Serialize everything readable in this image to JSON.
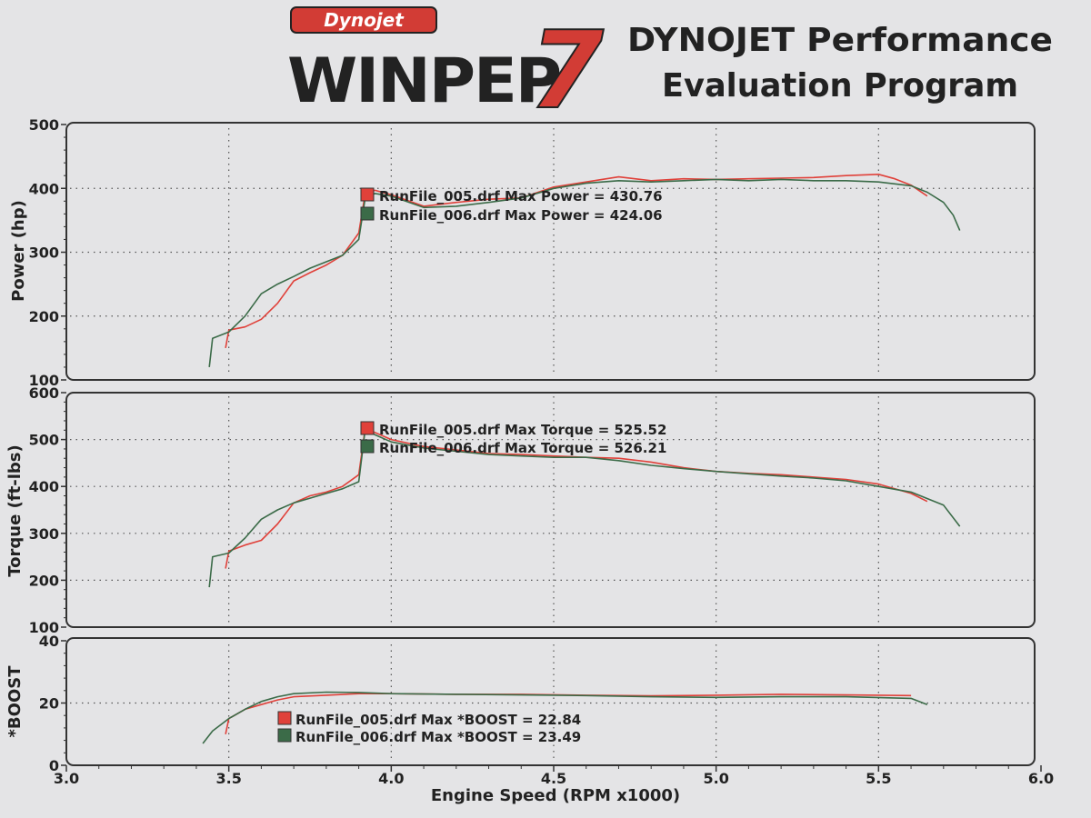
{
  "header": {
    "brand_small": "Dynojet",
    "logo_word": "WINPEP",
    "logo_number": "7",
    "tagline_line1": "DYNOJET Performance",
    "tagline_line2": "Evaluation Program"
  },
  "colors": {
    "run_005": "#e0413a",
    "run_006": "#3b6b48",
    "paper": "#e4e4e6",
    "logo_red": "#d23c35",
    "logo_dark": "#222222"
  },
  "chart_data": [
    {
      "type": "line",
      "ylabel": "Power (hp)",
      "ylim": [
        100,
        500
      ],
      "yticks": [
        100,
        200,
        300,
        400,
        500
      ],
      "xlim": [
        3.0,
        6.0
      ],
      "grid": true,
      "legend_placement": "center",
      "annotations": [
        {
          "text": "RunFile_005.drf Max Power = 430.76",
          "series": "RunFile_005.drf"
        },
        {
          "text": "RunFile_006.drf Max Power = 424.06",
          "series": "RunFile_006.drf"
        }
      ],
      "series": [
        {
          "name": "RunFile_005.drf",
          "x": [
            3.49,
            3.5,
            3.55,
            3.6,
            3.65,
            3.7,
            3.75,
            3.8,
            3.85,
            3.9,
            3.92,
            3.95,
            4.0,
            4.1,
            4.2,
            4.3,
            4.4,
            4.5,
            4.6,
            4.7,
            4.8,
            4.9,
            5.0,
            5.1,
            5.2,
            5.3,
            5.4,
            5.5,
            5.55,
            5.6,
            5.65
          ],
          "y": [
            150,
            178,
            183,
            195,
            220,
            255,
            268,
            280,
            295,
            330,
            392,
            397,
            390,
            372,
            378,
            383,
            385,
            402,
            410,
            418,
            412,
            415,
            414,
            415,
            416,
            417,
            420,
            422,
            415,
            405,
            388
          ]
        },
        {
          "name": "RunFile_006.drf",
          "x": [
            3.44,
            3.45,
            3.5,
            3.55,
            3.6,
            3.65,
            3.7,
            3.75,
            3.8,
            3.85,
            3.9,
            3.92,
            3.95,
            4.0,
            4.1,
            4.2,
            4.3,
            4.4,
            4.5,
            4.6,
            4.7,
            4.8,
            4.9,
            5.0,
            5.1,
            5.2,
            5.3,
            5.4,
            5.5,
            5.6,
            5.65,
            5.7,
            5.73,
            5.75
          ],
          "y": [
            120,
            165,
            175,
            200,
            235,
            250,
            262,
            275,
            285,
            295,
            320,
            385,
            392,
            388,
            370,
            372,
            378,
            385,
            400,
            408,
            412,
            410,
            412,
            414,
            412,
            414,
            412,
            412,
            410,
            404,
            394,
            378,
            358,
            334
          ]
        }
      ]
    },
    {
      "type": "line",
      "ylabel": "Torque (ft-lbs)",
      "ylim": [
        100,
        600
      ],
      "yticks": [
        100,
        200,
        300,
        400,
        500,
        600
      ],
      "xlim": [
        3.0,
        6.0
      ],
      "grid": true,
      "legend_placement": "top-left",
      "annotations": [
        {
          "text": "RunFile_005.drf Max Torque = 525.52",
          "series": "RunFile_005.drf"
        },
        {
          "text": "RunFile_006.drf Max Torque = 526.21",
          "series": "RunFile_006.drf"
        }
      ],
      "series": [
        {
          "name": "RunFile_005.drf",
          "x": [
            3.49,
            3.5,
            3.55,
            3.6,
            3.65,
            3.7,
            3.75,
            3.8,
            3.85,
            3.9,
            3.92,
            3.95,
            4.0,
            4.1,
            4.2,
            4.3,
            4.4,
            4.5,
            4.6,
            4.7,
            4.8,
            4.9,
            5.0,
            5.1,
            5.2,
            5.3,
            5.4,
            5.5,
            5.6,
            5.65
          ],
          "y": [
            225,
            262,
            275,
            285,
            320,
            365,
            380,
            388,
            400,
            425,
            524,
            515,
            500,
            485,
            478,
            470,
            468,
            465,
            462,
            460,
            452,
            440,
            432,
            428,
            425,
            420,
            415,
            405,
            385,
            368
          ]
        },
        {
          "name": "RunFile_006.drf",
          "x": [
            3.44,
            3.45,
            3.5,
            3.55,
            3.6,
            3.65,
            3.7,
            3.75,
            3.8,
            3.85,
            3.9,
            3.92,
            3.95,
            4.0,
            4.1,
            4.2,
            4.3,
            4.4,
            4.5,
            4.6,
            4.7,
            4.8,
            4.9,
            5.0,
            5.1,
            5.2,
            5.3,
            5.4,
            5.5,
            5.6,
            5.7,
            5.75
          ],
          "y": [
            185,
            250,
            258,
            290,
            330,
            350,
            365,
            375,
            385,
            395,
            410,
            522,
            510,
            495,
            482,
            475,
            468,
            465,
            462,
            462,
            455,
            445,
            438,
            432,
            427,
            422,
            418,
            412,
            400,
            388,
            360,
            315
          ]
        }
      ]
    },
    {
      "type": "line",
      "ylabel": "*BOOST",
      "xlabel": "Engine Speed (RPM x1000)",
      "ylim": [
        0,
        40
      ],
      "yticks": [
        0,
        20,
        40
      ],
      "xlim": [
        3.0,
        6.0
      ],
      "xticks": [
        "3.0",
        "3.5",
        "4.0",
        "4.5",
        "5.0",
        "5.5",
        "6.0"
      ],
      "grid": true,
      "legend_placement": "bottom-left",
      "annotations": [
        {
          "text": "RunFile_005.drf Max *BOOST = 22.84",
          "series": "RunFile_005.drf"
        },
        {
          "text": "RunFile_006.drf Max *BOOST = 23.49",
          "series": "RunFile_006.drf"
        }
      ],
      "series": [
        {
          "name": "RunFile_005.drf",
          "x": [
            3.49,
            3.5,
            3.55,
            3.6,
            3.65,
            3.7,
            3.8,
            3.9,
            4.0,
            4.2,
            4.4,
            4.6,
            4.8,
            5.0,
            5.2,
            5.4,
            5.6
          ],
          "y": [
            10,
            15,
            18,
            19.5,
            21,
            22,
            22.5,
            23,
            23,
            22.8,
            22.8,
            22.5,
            22.3,
            22.5,
            22.8,
            22.6,
            22.4
          ]
        },
        {
          "name": "RunFile_006.drf",
          "x": [
            3.42,
            3.45,
            3.5,
            3.55,
            3.6,
            3.65,
            3.7,
            3.8,
            3.9,
            4.0,
            4.2,
            4.4,
            4.6,
            4.8,
            5.0,
            5.2,
            5.4,
            5.6,
            5.65
          ],
          "y": [
            7,
            11,
            15,
            18,
            20.5,
            22,
            23,
            23.5,
            23.4,
            23,
            22.8,
            22.6,
            22.4,
            22,
            21.8,
            22,
            22,
            21.5,
            19.5
          ]
        }
      ]
    }
  ]
}
